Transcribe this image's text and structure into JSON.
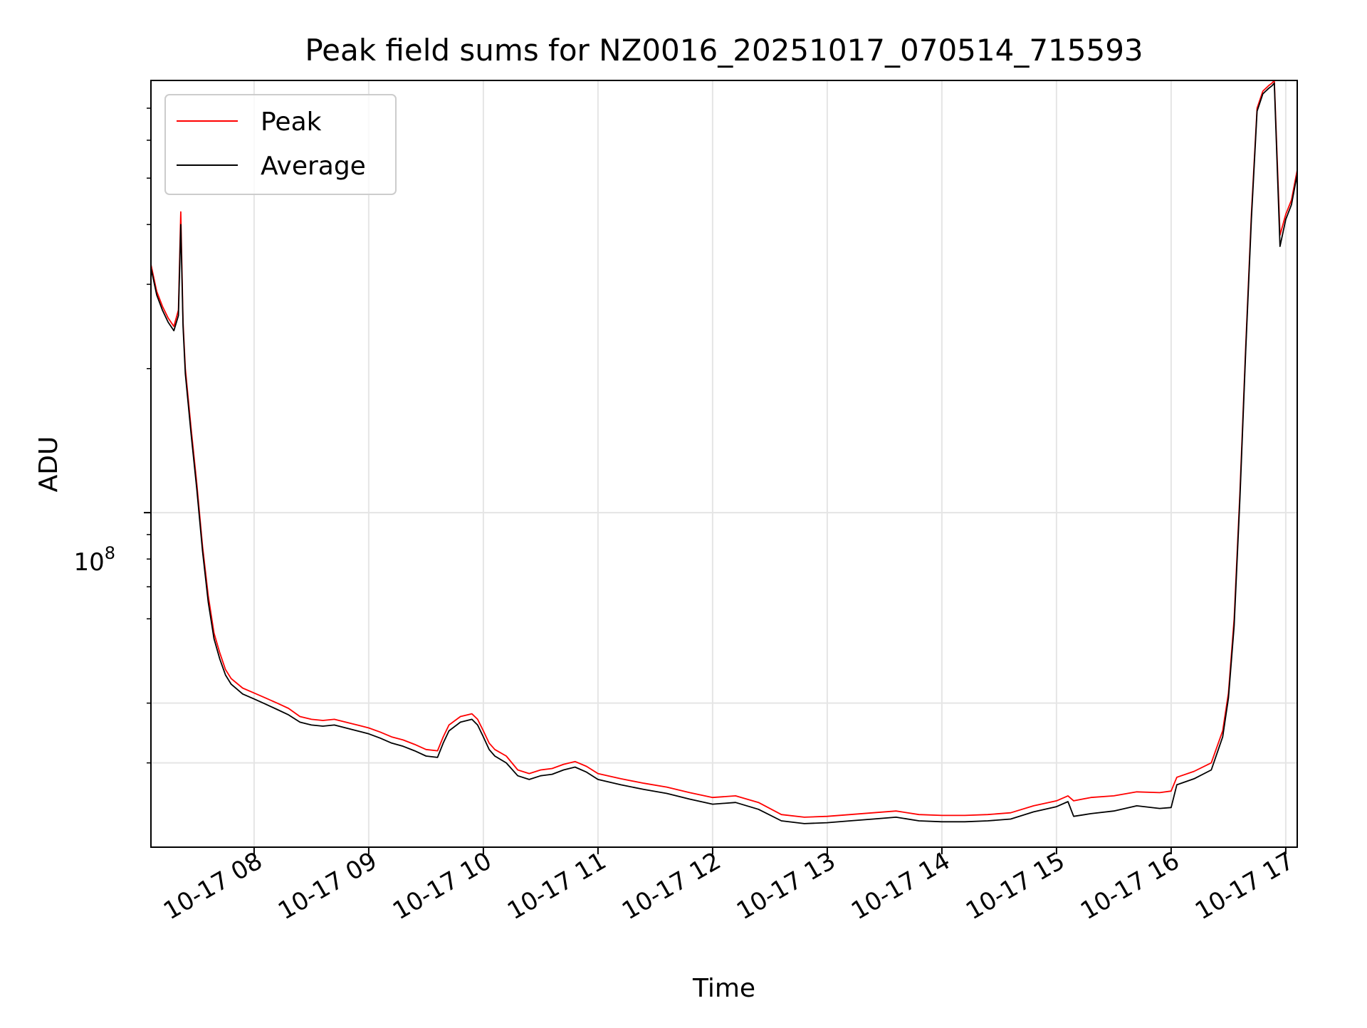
{
  "chart_data": {
    "type": "line",
    "title": "Peak field sums for NZ0016_20251017_070514_715593",
    "xlabel": "Time",
    "ylabel": "ADU",
    "yscale": "log",
    "ylim": [
      20000000,
      800000000
    ],
    "xlim": [
      7.1,
      17.1
    ],
    "grid": true,
    "legend_position": "top-left",
    "x_ticks": [
      8,
      9,
      10,
      11,
      12,
      13,
      14,
      15,
      16,
      17
    ],
    "x_tick_labels": [
      "10-17 08",
      "10-17 09",
      "10-17 10",
      "10-17 11",
      "10-17 12",
      "10-17 13",
      "10-17 14",
      "10-17 15",
      "10-17 16",
      "10-17 17"
    ],
    "y_major_ticks": [
      100000000
    ],
    "y_major_tick_label": "10^8",
    "y_major_tick_base": "10",
    "y_major_tick_exponent": "8",
    "y_minor_ticks": [
      20000000,
      30000000,
      40000000,
      60000000,
      70000000,
      80000000,
      90000000,
      200000000,
      300000000,
      400000000,
      500000000,
      600000000,
      700000000
    ],
    "y_minor_gridlines": [
      20000000,
      30000000,
      40000000
    ],
    "series": [
      {
        "name": "Peak",
        "color": "#ff0000",
        "x": [
          7.1,
          7.15,
          7.2,
          7.25,
          7.3,
          7.34,
          7.36,
          7.38,
          7.4,
          7.45,
          7.5,
          7.55,
          7.6,
          7.65,
          7.7,
          7.75,
          7.8,
          7.9,
          8.0,
          8.1,
          8.2,
          8.3,
          8.4,
          8.5,
          8.6,
          8.7,
          8.8,
          8.9,
          9.0,
          9.1,
          9.2,
          9.3,
          9.4,
          9.5,
          9.6,
          9.65,
          9.7,
          9.8,
          9.9,
          9.95,
          10.0,
          10.05,
          10.1,
          10.2,
          10.3,
          10.4,
          10.5,
          10.6,
          10.7,
          10.8,
          10.9,
          11.0,
          11.2,
          11.4,
          11.6,
          11.8,
          12.0,
          12.2,
          12.4,
          12.6,
          12.8,
          13.0,
          13.2,
          13.4,
          13.6,
          13.8,
          14.0,
          14.2,
          14.4,
          14.6,
          14.8,
          15.0,
          15.1,
          15.15,
          15.3,
          15.5,
          15.7,
          15.9,
          16.0,
          16.05,
          16.2,
          16.35,
          16.45,
          16.5,
          16.55,
          16.6,
          16.65,
          16.7,
          16.75,
          16.8,
          16.85,
          16.88,
          16.9,
          16.95,
          17.0,
          17.05,
          17.1
        ],
        "values": [
          330000000,
          290000000,
          270000000,
          255000000,
          245000000,
          265000000,
          425000000,
          250000000,
          200000000,
          150000000,
          115000000,
          85000000,
          67000000,
          56000000,
          51000000,
          47000000,
          45000000,
          43000000,
          42000000,
          41000000,
          40000000,
          39000000,
          37500000,
          37000000,
          36800000,
          37000000,
          36500000,
          36000000,
          35500000,
          34800000,
          34000000,
          33500000,
          32800000,
          32000000,
          31800000,
          34000000,
          36000000,
          37500000,
          38000000,
          37000000,
          35000000,
          33000000,
          32000000,
          31000000,
          29000000,
          28500000,
          29000000,
          29200000,
          29800000,
          30200000,
          29500000,
          28500000,
          27800000,
          27200000,
          26700000,
          26000000,
          25400000,
          25600000,
          24800000,
          23400000,
          23100000,
          23200000,
          23400000,
          23600000,
          23800000,
          23400000,
          23300000,
          23300000,
          23400000,
          23600000,
          24400000,
          25000000,
          25600000,
          25000000,
          25400000,
          25600000,
          26100000,
          26000000,
          26200000,
          28000000,
          28800000,
          30000000,
          35000000,
          42000000,
          60000000,
          110000000,
          220000000,
          420000000,
          700000000,
          760000000,
          780000000,
          790000000,
          800000000,
          380000000,
          420000000,
          450000000,
          520000000
        ]
      },
      {
        "name": "Average",
        "color": "#000000",
        "x": [
          7.1,
          7.15,
          7.2,
          7.25,
          7.3,
          7.34,
          7.36,
          7.38,
          7.4,
          7.45,
          7.5,
          7.55,
          7.6,
          7.65,
          7.7,
          7.75,
          7.8,
          7.9,
          8.0,
          8.1,
          8.2,
          8.3,
          8.4,
          8.5,
          8.6,
          8.7,
          8.8,
          8.9,
          9.0,
          9.1,
          9.2,
          9.3,
          9.4,
          9.5,
          9.6,
          9.65,
          9.7,
          9.8,
          9.9,
          9.95,
          10.0,
          10.05,
          10.1,
          10.2,
          10.3,
          10.4,
          10.5,
          10.6,
          10.7,
          10.8,
          10.9,
          11.0,
          11.2,
          11.4,
          11.6,
          11.8,
          12.0,
          12.2,
          12.4,
          12.6,
          12.8,
          13.0,
          13.2,
          13.4,
          13.6,
          13.8,
          14.0,
          14.2,
          14.4,
          14.6,
          14.8,
          15.0,
          15.1,
          15.15,
          15.3,
          15.5,
          15.7,
          15.9,
          16.0,
          16.05,
          16.2,
          16.35,
          16.45,
          16.5,
          16.55,
          16.6,
          16.65,
          16.7,
          16.75,
          16.8,
          16.85,
          16.88,
          16.9,
          16.95,
          17.0,
          17.05,
          17.1
        ],
        "values": [
          325000000,
          285000000,
          265000000,
          250000000,
          240000000,
          258000000,
          400000000,
          245000000,
          195000000,
          146000000,
          112000000,
          83000000,
          65000000,
          54500000,
          49500000,
          45800000,
          43800000,
          41800000,
          40800000,
          39800000,
          38800000,
          37800000,
          36500000,
          36000000,
          35800000,
          36000000,
          35500000,
          35000000,
          34500000,
          33800000,
          33000000,
          32500000,
          31800000,
          31000000,
          30800000,
          33000000,
          35000000,
          36500000,
          37000000,
          36000000,
          34000000,
          32000000,
          31000000,
          30000000,
          28200000,
          27700000,
          28200000,
          28400000,
          29000000,
          29400000,
          28700000,
          27700000,
          27000000,
          26400000,
          25900000,
          25200000,
          24600000,
          24800000,
          24000000,
          22700000,
          22400000,
          22500000,
          22700000,
          22900000,
          23100000,
          22700000,
          22600000,
          22600000,
          22700000,
          22900000,
          23700000,
          24300000,
          24900000,
          23200000,
          23500000,
          23800000,
          24400000,
          24100000,
          24200000,
          27000000,
          27800000,
          29000000,
          34000000,
          41000000,
          58000000,
          107000000,
          215000000,
          410000000,
          690000000,
          750000000,
          770000000,
          780000000,
          790000000,
          360000000,
          410000000,
          440000000,
          510000000
        ]
      }
    ]
  }
}
